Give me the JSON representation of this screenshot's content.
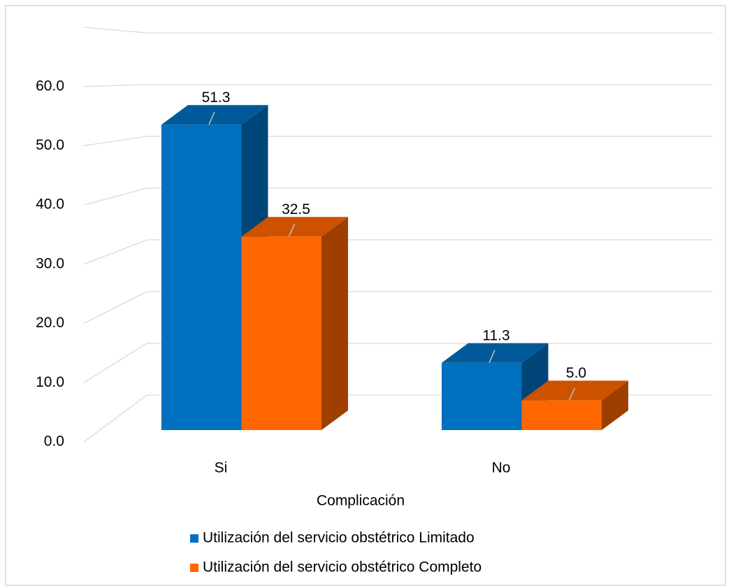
{
  "chart_data": {
    "type": "bar3d",
    "x_label": "Complicación",
    "categories": [
      "Si",
      "No"
    ],
    "series": [
      {
        "name": "Utilización del servicio obstétrico Limitado",
        "color": "#0070c0",
        "values": [
          51.3,
          11.3
        ],
        "value_labels": [
          "51.3",
          "11.3"
        ]
      },
      {
        "name": "Utilización del servicio obstétrico Completo",
        "color": "#ff6600",
        "values": [
          32.5,
          5.0
        ],
        "value_labels": [
          "32.5",
          "5.0"
        ]
      }
    ],
    "ylim": [
      0,
      70
    ],
    "yticks": [
      {
        "value": 0,
        "label": "0.0"
      },
      {
        "value": 10,
        "label": "10.0"
      },
      {
        "value": 20,
        "label": "20.0"
      },
      {
        "value": 30,
        "label": "30.0"
      },
      {
        "value": 40,
        "label": "40.0"
      },
      {
        "value": 50,
        "label": "50.0"
      },
      {
        "value": 60,
        "label": "60.0"
      }
    ],
    "grid": true,
    "legend": "bottom"
  }
}
